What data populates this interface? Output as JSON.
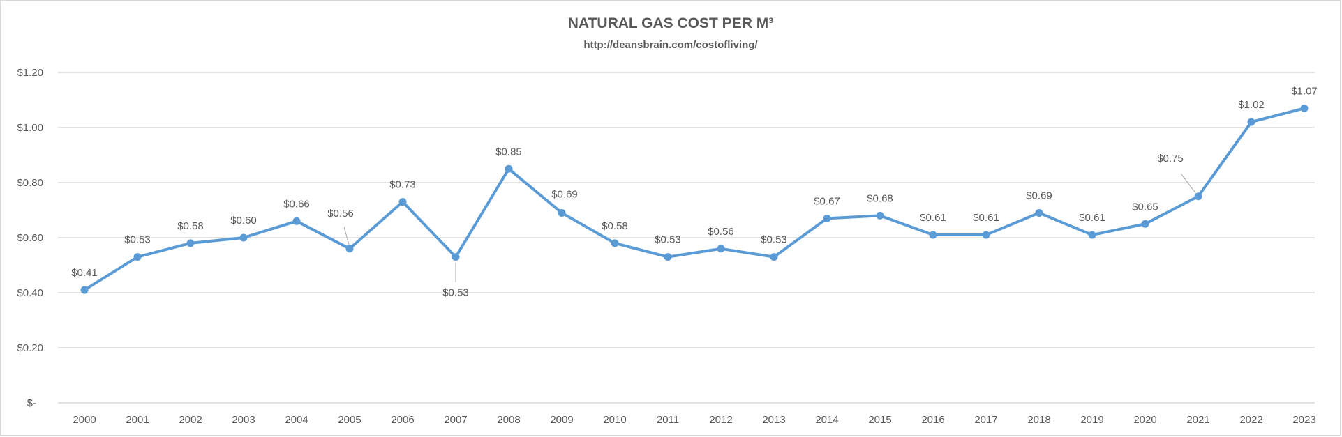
{
  "chart_data": {
    "type": "line",
    "title": "NATURAL GAS COST PER M³",
    "subtitle": "http://deansbrain.com/costofliving/",
    "xlabel": "",
    "ylabel": "",
    "categories": [
      "2000",
      "2001",
      "2002",
      "2003",
      "2004",
      "2005",
      "2006",
      "2007",
      "2008",
      "2009",
      "2010",
      "2011",
      "2012",
      "2013",
      "2014",
      "2015",
      "2016",
      "2017",
      "2018",
      "2019",
      "2020",
      "2021",
      "2022",
      "2023"
    ],
    "series": [
      {
        "values": [
          0.41,
          0.53,
          0.58,
          0.6,
          0.66,
          0.56,
          0.73,
          0.53,
          0.85,
          0.69,
          0.58,
          0.53,
          0.56,
          0.53,
          0.67,
          0.68,
          0.61,
          0.61,
          0.69,
          0.61,
          0.65,
          0.75,
          1.02,
          1.07
        ],
        "labels": [
          "$0.41",
          "$0.53",
          "$0.58",
          "$0.60",
          "$0.66",
          "$0.56",
          "$0.73",
          "$0.53",
          "$0.85",
          "$0.69",
          "$0.58",
          "$0.53",
          "$0.56",
          "$0.53",
          "$0.67",
          "$0.68",
          "$0.61",
          "$0.61",
          "$0.69",
          "$0.61",
          "$0.65",
          "$0.75",
          "$1.02",
          "$1.07"
        ],
        "color": "#5b9bd5"
      }
    ],
    "ylim": [
      0,
      1.2
    ],
    "yticks": [
      0,
      0.2,
      0.4,
      0.6,
      0.8,
      1.0,
      1.2
    ],
    "ytick_labels": [
      "$-",
      "$0.20",
      "$0.40",
      "$0.60",
      "$0.80",
      "$1.00",
      "$1.20"
    ],
    "grid": true,
    "legend": "none",
    "colors": {
      "text": "#595959",
      "grid": "#d9d9d9",
      "line": "#5b9bd5"
    }
  }
}
